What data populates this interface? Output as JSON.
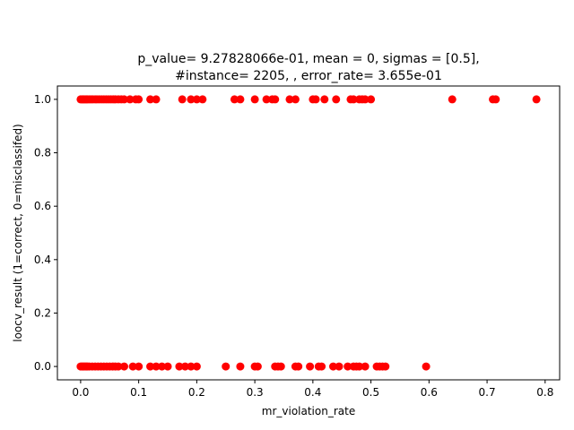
{
  "chart_data": {
    "type": "scatter",
    "title_lines": [
      "p_value= 9.27828066e-01, mean = 0, sigmas = [0.5],",
      "#instance= 2205, , error_rate= 3.655e-01"
    ],
    "xlabel": "mr_violation_rate",
    "ylabel": "loocv_result (1=correct, 0=misclassifed)",
    "xlim": [
      -0.04,
      0.825
    ],
    "ylim": [
      -0.05,
      1.05
    ],
    "xticks": [
      0.0,
      0.1,
      0.2,
      0.3,
      0.4,
      0.5,
      0.6,
      0.7,
      0.8
    ],
    "xtick_labels": [
      "0.0",
      "0.1",
      "0.2",
      "0.3",
      "0.4",
      "0.5",
      "0.6",
      "0.7",
      "0.8"
    ],
    "yticks": [
      0.0,
      0.2,
      0.4,
      0.6,
      0.8,
      1.0
    ],
    "ytick_labels": [
      "0.0",
      "0.2",
      "0.4",
      "0.6",
      "0.8",
      "1.0"
    ],
    "grid": false,
    "marker_color": "#ff0000",
    "series": [
      {
        "x": [
          0.0,
          0.002,
          0.004,
          0.006,
          0.008,
          0.01,
          0.012,
          0.015,
          0.018,
          0.021,
          0.025,
          0.028,
          0.032,
          0.036,
          0.04,
          0.044,
          0.048,
          0.052,
          0.056,
          0.06,
          0.065,
          0.07,
          0.075,
          0.085,
          0.095,
          0.1,
          0.12,
          0.13,
          0.175,
          0.19,
          0.2,
          0.21,
          0.265,
          0.275,
          0.3,
          0.32,
          0.33,
          0.335,
          0.36,
          0.37,
          0.4,
          0.405,
          0.42,
          0.44,
          0.465,
          0.47,
          0.48,
          0.485,
          0.49,
          0.5,
          0.64,
          0.71,
          0.715,
          0.785
        ],
        "y": [
          1,
          1,
          1,
          1,
          1,
          1,
          1,
          1,
          1,
          1,
          1,
          1,
          1,
          1,
          1,
          1,
          1,
          1,
          1,
          1,
          1,
          1,
          1,
          1,
          1,
          1,
          1,
          1,
          1,
          1,
          1,
          1,
          1,
          1,
          1,
          1,
          1,
          1,
          1,
          1,
          1,
          1,
          1,
          1,
          1,
          1,
          1,
          1,
          1,
          1,
          1,
          1,
          1,
          1
        ]
      },
      {
        "x": [
          0.0,
          0.002,
          0.004,
          0.006,
          0.008,
          0.01,
          0.012,
          0.015,
          0.02,
          0.025,
          0.03,
          0.035,
          0.04,
          0.045,
          0.05,
          0.055,
          0.06,
          0.065,
          0.075,
          0.09,
          0.1,
          0.12,
          0.13,
          0.14,
          0.15,
          0.17,
          0.18,
          0.19,
          0.2,
          0.25,
          0.275,
          0.3,
          0.305,
          0.335,
          0.34,
          0.345,
          0.37,
          0.375,
          0.395,
          0.41,
          0.415,
          0.435,
          0.445,
          0.46,
          0.47,
          0.475,
          0.48,
          0.49,
          0.51,
          0.515,
          0.52,
          0.525,
          0.595
        ],
        "y": [
          0,
          0,
          0,
          0,
          0,
          0,
          0,
          0,
          0,
          0,
          0,
          0,
          0,
          0,
          0,
          0,
          0,
          0,
          0,
          0,
          0,
          0,
          0,
          0,
          0,
          0,
          0,
          0,
          0,
          0,
          0,
          0,
          0,
          0,
          0,
          0,
          0,
          0,
          0,
          0,
          0,
          0,
          0,
          0,
          0,
          0,
          0,
          0,
          0,
          0,
          0,
          0,
          0
        ]
      }
    ]
  }
}
